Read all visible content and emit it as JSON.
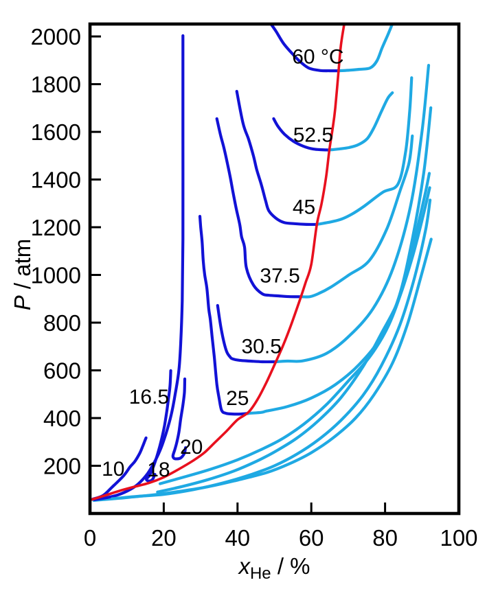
{
  "page": {
    "background": "#ffffff"
  },
  "chart_data": {
    "type": "line",
    "title": "",
    "xlabel": {
      "var": "x",
      "sub": "He",
      "rest": " / %"
    },
    "ylabel": {
      "var": "P",
      "rest": " / atm"
    },
    "xlim": [
      0,
      100
    ],
    "ylim": [
      0,
      2052
    ],
    "x_ticks": [
      0,
      20,
      40,
      60,
      80,
      100
    ],
    "y_ticks": [
      200,
      400,
      600,
      800,
      1000,
      1200,
      1400,
      1600,
      1800,
      2000
    ],
    "grid": false,
    "legend": "none",
    "styles": {
      "left_branch_color": "#1212d6",
      "right_branch_color": "#1fa9e3",
      "critical_color": "#e8101e",
      "axis_color": "#000000",
      "text_color": "#000000",
      "curve_width": 4.2,
      "critical_width": 3.6,
      "frame_width": 4.6,
      "tick_len": 14,
      "tick_width": 3,
      "tick_font": 33,
      "label_font": 30
    },
    "critical_line": {
      "name": "critical-line",
      "points": [
        [
          0.4,
          58
        ],
        [
          4,
          75
        ],
        [
          8,
          95
        ],
        [
          12,
          112
        ],
        [
          16,
          128
        ],
        [
          20,
          152
        ],
        [
          24,
          185
        ],
        [
          28,
          222
        ],
        [
          31,
          255
        ],
        [
          34,
          300
        ],
        [
          37,
          345
        ],
        [
          40,
          393
        ],
        [
          43,
          425
        ],
        [
          45.5,
          480
        ],
        [
          48,
          555
        ],
        [
          50.4,
          636
        ],
        [
          52.5,
          710
        ],
        [
          54.5,
          790
        ],
        [
          57.2,
          909
        ],
        [
          58.5,
          970
        ],
        [
          60,
          1045
        ],
        [
          61.5,
          1212
        ],
        [
          62.8,
          1300
        ],
        [
          64,
          1410
        ],
        [
          64.9,
          1524
        ],
        [
          65.8,
          1615
        ],
        [
          66.5,
          1700
        ],
        [
          67.4,
          1856
        ],
        [
          68,
          1960
        ],
        [
          68.9,
          2050
        ]
      ]
    },
    "isotherms": [
      {
        "t_label": "10",
        "T_C": 10,
        "label_pos": [
          6.3,
          190
        ],
        "left_branch": [
          [
            0.7,
            60
          ],
          [
            3.5,
            75
          ],
          [
            5.9,
            109
          ],
          [
            9.1,
            158
          ],
          [
            10.9,
            196
          ],
          [
            12.2,
            219
          ],
          [
            13.5,
            253
          ],
          [
            14.3,
            282
          ],
          [
            14.8,
            302
          ],
          [
            15.2,
            317
          ]
        ],
        "right_branch": [
          [
            1,
            55
          ],
          [
            8,
            64
          ],
          [
            16,
            76
          ],
          [
            24,
            92
          ],
          [
            32,
            112
          ],
          [
            40,
            140
          ],
          [
            48,
            172
          ],
          [
            54,
            208
          ],
          [
            60,
            255
          ],
          [
            66,
            318
          ],
          [
            72,
            400
          ],
          [
            77,
            498
          ],
          [
            82,
            630
          ],
          [
            86,
            790
          ],
          [
            89.5,
            980
          ],
          [
            92.5,
            1150
          ]
        ]
      },
      {
        "t_label": "16.5",
        "T_C": 16.5,
        "label_pos": [
          16,
          492
        ],
        "left_branch": [
          [
            1.2,
            58
          ],
          [
            4.4,
            66
          ],
          [
            7.6,
            78
          ],
          [
            10.6,
            98
          ],
          [
            13.1,
            124
          ],
          [
            15.6,
            167
          ],
          [
            17.6,
            219
          ],
          [
            19.3,
            276
          ],
          [
            20.7,
            340
          ],
          [
            22,
            412
          ],
          [
            23.1,
            500
          ],
          [
            24.1,
            600
          ],
          [
            24.6,
            715
          ],
          [
            25,
            890
          ],
          [
            25.2,
            1150
          ],
          [
            25.2,
            1580
          ],
          [
            25.2,
            2003
          ]
        ],
        "right_branch": [
          [
            6,
            62
          ],
          [
            13,
            72
          ],
          [
            20,
            80
          ],
          [
            28,
            100
          ],
          [
            36,
            128
          ],
          [
            44,
            165
          ],
          [
            50,
            200
          ],
          [
            56,
            248
          ],
          [
            62,
            310
          ],
          [
            68,
            390
          ],
          [
            74,
            495
          ],
          [
            79,
            620
          ],
          [
            84,
            790
          ],
          [
            88,
            990
          ],
          [
            91,
            1190
          ],
          [
            92.2,
            1314
          ]
        ]
      },
      {
        "t_label": "18",
        "T_C": 18,
        "label_pos": [
          18.6,
          187
        ],
        "left_branch": [
          [
            21.9,
            599
          ],
          [
            21.7,
            535
          ],
          [
            21.3,
            484
          ],
          [
            20.8,
            426
          ],
          [
            20.2,
            368
          ],
          [
            19.4,
            311
          ],
          [
            18.4,
            253
          ],
          [
            17.3,
            201
          ],
          [
            16.2,
            161
          ],
          [
            15.3,
            144
          ],
          [
            15.9,
            136
          ],
          [
            16.9,
            142
          ],
          [
            17.6,
            164
          ]
        ],
        "right_branch": [
          [
            18.3,
            90
          ],
          [
            25,
            113
          ],
          [
            32,
            142
          ],
          [
            39,
            178
          ],
          [
            45,
            218
          ],
          [
            50,
            258
          ],
          [
            56,
            315
          ],
          [
            62,
            390
          ],
          [
            68,
            485
          ],
          [
            74,
            615
          ],
          [
            79,
            755
          ],
          [
            83.5,
            890
          ],
          [
            87.5,
            1080
          ],
          [
            90.5,
            1260
          ],
          [
            92.1,
            1366
          ]
        ]
      },
      {
        "t_label": "20",
        "T_C": 20,
        "label_pos": [
          27.5,
          282
        ],
        "left_branch": [
          [
            25.7,
            564
          ],
          [
            25.6,
            507
          ],
          [
            25.2,
            455
          ],
          [
            24.6,
            397
          ],
          [
            24.1,
            340
          ],
          [
            23.5,
            296
          ],
          [
            23,
            268
          ],
          [
            22.5,
            242
          ],
          [
            22.8,
            231
          ],
          [
            23.5,
            229
          ],
          [
            24.6,
            233
          ],
          [
            25.6,
            253
          ],
          [
            25.9,
            276
          ]
        ],
        "right_branch": [
          [
            19,
            125
          ],
          [
            26,
            155
          ],
          [
            33,
            187
          ],
          [
            40,
            225
          ],
          [
            46,
            265
          ],
          [
            52,
            312
          ],
          [
            58,
            375
          ],
          [
            64,
            455
          ],
          [
            70,
            555
          ],
          [
            76,
            660
          ],
          [
            81,
            790
          ],
          [
            85,
            960
          ],
          [
            88.5,
            1180
          ],
          [
            91,
            1350
          ],
          [
            92,
            1426
          ]
        ]
      },
      {
        "t_label": "25",
        "T_C": 25,
        "label_pos": [
          40,
          486
        ],
        "left_branch": [
          [
            29.8,
            1246
          ],
          [
            30,
            1203
          ],
          [
            30.4,
            1140
          ],
          [
            30.7,
            1059
          ],
          [
            31.1,
            1001
          ],
          [
            31.7,
            944
          ],
          [
            32.2,
            858
          ],
          [
            32.6,
            815
          ],
          [
            33.1,
            743
          ],
          [
            33.7,
            656
          ],
          [
            34.4,
            541
          ],
          [
            35,
            484
          ],
          [
            35.7,
            432
          ],
          [
            36.9,
            420
          ],
          [
            38.7,
            417
          ],
          [
            40.9,
            417
          ],
          [
            43,
            420
          ]
        ],
        "right_branch": [
          [
            43,
            420
          ],
          [
            46.5,
            424
          ],
          [
            48,
            430
          ],
          [
            53.5,
            448
          ],
          [
            60,
            484
          ],
          [
            66.5,
            540
          ],
          [
            73,
            625
          ],
          [
            78.9,
            740
          ],
          [
            83.7,
            905
          ],
          [
            87.4,
            1150
          ],
          [
            90.5,
            1430
          ],
          [
            92.4,
            1701
          ]
        ]
      },
      {
        "t_label": "30.5",
        "T_C": 30.5,
        "label_pos": [
          46.5,
          703
        ],
        "left_branch": [
          [
            34.6,
            872
          ],
          [
            35.6,
            771
          ],
          [
            36.9,
            685
          ],
          [
            38,
            656
          ],
          [
            38.7,
            648
          ],
          [
            40.6,
            642
          ],
          [
            43.3,
            639
          ],
          [
            46.7,
            636
          ],
          [
            50.4,
            636
          ]
        ],
        "right_branch": [
          [
            50.4,
            636
          ],
          [
            53.5,
            639
          ],
          [
            57.8,
            640
          ],
          [
            64.1,
            671
          ],
          [
            70.2,
            743
          ],
          [
            76.7,
            858
          ],
          [
            82.2,
            1030
          ],
          [
            86.9,
            1289
          ],
          [
            90,
            1600
          ],
          [
            91.8,
            1879
          ]
        ]
      },
      {
        "t_label": "37.5",
        "T_C": 37.5,
        "label_pos": [
          51.5,
          1000
        ],
        "left_branch": [
          [
            34.4,
            1655
          ],
          [
            35.4,
            1586
          ],
          [
            36.3,
            1534
          ],
          [
            37.2,
            1471
          ],
          [
            38.1,
            1404
          ],
          [
            38.7,
            1353
          ],
          [
            39.6,
            1281
          ],
          [
            40.6,
            1212
          ],
          [
            41.1,
            1160
          ],
          [
            41.9,
            1117
          ],
          [
            42.4,
            1030
          ],
          [
            44.3,
            958
          ],
          [
            46.7,
            921
          ],
          [
            48.5,
            915
          ],
          [
            51.3,
            912
          ],
          [
            54.4,
            909
          ],
          [
            57.2,
            909
          ]
        ],
        "right_branch": [
          [
            57.2,
            909
          ],
          [
            59.6,
            909
          ],
          [
            62,
            922
          ],
          [
            65.2,
            948
          ],
          [
            70.2,
            1000
          ],
          [
            75.7,
            1060
          ],
          [
            80.4,
            1190
          ],
          [
            84,
            1350
          ],
          [
            86.5,
            1470
          ],
          [
            87.4,
            1583
          ]
        ]
      },
      {
        "t_label": "45",
        "T_C": 45,
        "label_pos": [
          58,
          1288
        ],
        "left_branch": [
          [
            39.8,
            1770
          ],
          [
            41.5,
            1635
          ],
          [
            43,
            1569
          ],
          [
            44.3,
            1500
          ],
          [
            45.2,
            1442
          ],
          [
            46.5,
            1376
          ],
          [
            47.6,
            1312
          ],
          [
            48.5,
            1269
          ],
          [
            50.4,
            1238
          ],
          [
            52.6,
            1220
          ],
          [
            55.4,
            1215
          ],
          [
            58.7,
            1212
          ],
          [
            61.5,
            1212
          ]
        ],
        "right_branch": [
          [
            61.5,
            1212
          ],
          [
            64.5,
            1220
          ],
          [
            67.8,
            1232
          ],
          [
            71,
            1255
          ],
          [
            74.4,
            1289
          ],
          [
            79.4,
            1347
          ],
          [
            83.5,
            1381
          ],
          [
            85.6,
            1520
          ],
          [
            86.7,
            1692
          ],
          [
            87.2,
            1827
          ]
        ]
      },
      {
        "t_label": "52.5",
        "T_C": 52.5,
        "label_pos": [
          60.5,
          1590
        ],
        "left_branch": [
          [
            49.8,
            1655
          ],
          [
            51,
            1622
          ],
          [
            52.8,
            1589
          ],
          [
            55.2,
            1560
          ],
          [
            57.8,
            1540
          ],
          [
            60.5,
            1528
          ],
          [
            62.8,
            1525
          ],
          [
            64.9,
            1524
          ]
        ],
        "right_branch": [
          [
            64.9,
            1524
          ],
          [
            67.5,
            1528
          ],
          [
            70.5,
            1535
          ],
          [
            73,
            1548
          ],
          [
            75.2,
            1572
          ],
          [
            77,
            1618
          ],
          [
            79,
            1685
          ],
          [
            80.7,
            1740
          ],
          [
            82,
            1764
          ]
        ]
      },
      {
        "t_label": "60 °C",
        "T_C": 60,
        "label_pos": [
          61.8,
          1917
        ],
        "left_branch": [
          [
            49.2,
            2049
          ],
          [
            50.5,
            2020
          ],
          [
            52.5,
            1970
          ],
          [
            55,
            1925
          ],
          [
            57.3,
            1890
          ],
          [
            59.5,
            1866
          ],
          [
            62.5,
            1857
          ],
          [
            65,
            1856
          ],
          [
            67.4,
            1856
          ]
        ],
        "right_branch": [
          [
            67.4,
            1856
          ],
          [
            70,
            1858
          ],
          [
            73,
            1862
          ],
          [
            76,
            1868
          ],
          [
            77.8,
            1898
          ],
          [
            79.2,
            1952
          ],
          [
            80.7,
            2005
          ],
          [
            81.8,
            2046
          ]
        ]
      }
    ]
  }
}
